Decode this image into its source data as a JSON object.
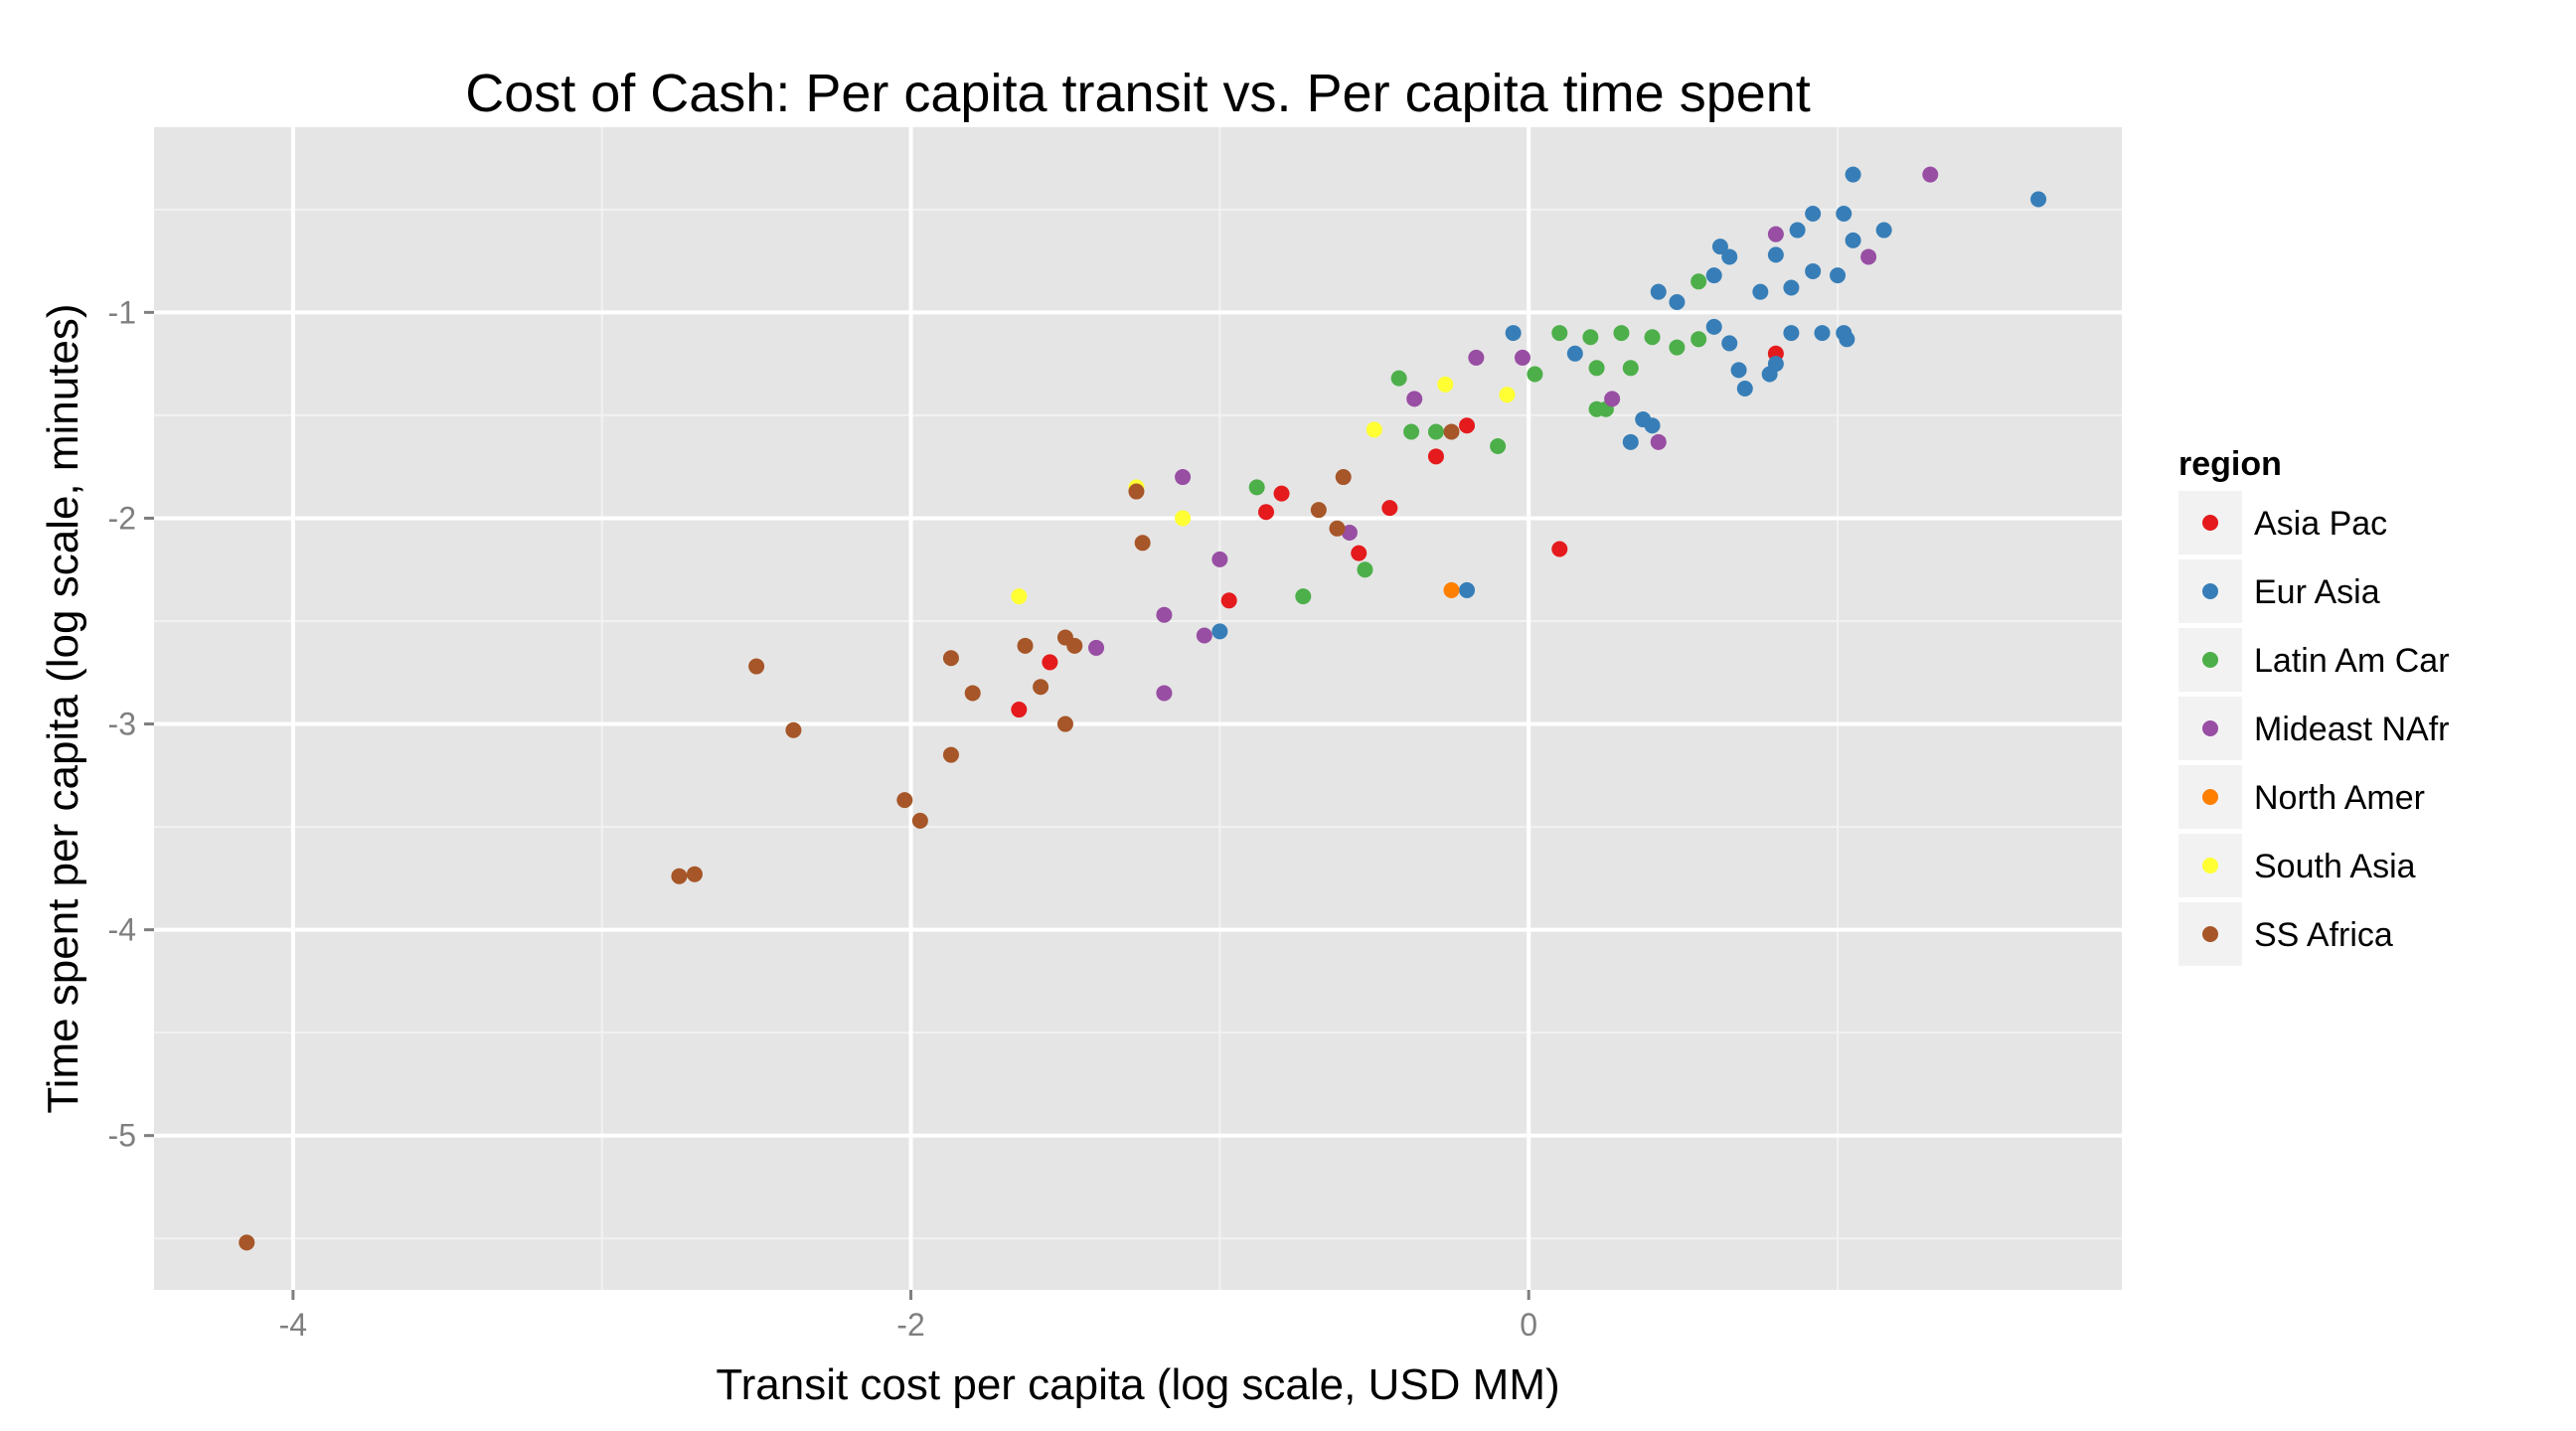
{
  "chart_data": {
    "type": "scatter",
    "title": "Cost of Cash: Per capita transit vs. Per capita time spent",
    "xlabel": "Transit cost per capita (log scale, USD MM)",
    "ylabel": "Time spent per capita (log scale, minutes)",
    "xlim": [
      -4.45,
      1.92
    ],
    "ylim": [
      -5.75,
      -0.1
    ],
    "x_ticks": [
      -4,
      -2,
      0
    ],
    "x_tick_labels": [
      "-4",
      "-2",
      "0"
    ],
    "y_ticks": [
      -5,
      -4,
      -3,
      -2,
      -1
    ],
    "y_tick_labels": [
      "-5",
      "-4",
      "-3",
      "-2",
      "-1"
    ],
    "grid": true,
    "legend": {
      "title": "region",
      "position": "right"
    },
    "series": [
      {
        "name": "Asia Pac",
        "color": "#e41a1c",
        "points": [
          [
            -0.3,
            -1.7
          ],
          [
            -0.2,
            -1.55
          ],
          [
            -0.55,
            -2.17
          ],
          [
            -0.45,
            -1.95
          ],
          [
            -0.8,
            -1.88
          ],
          [
            -0.85,
            -1.97
          ],
          [
            -0.97,
            -2.4
          ],
          [
            -1.55,
            -2.7
          ],
          [
            -1.65,
            -2.93
          ],
          [
            0.1,
            -2.15
          ],
          [
            0.8,
            -1.2
          ]
        ]
      },
      {
        "name": "Eur Asia",
        "color": "#377eb8",
        "points": [
          [
            1.05,
            -0.33
          ],
          [
            1.65,
            -0.45
          ],
          [
            0.92,
            -0.52
          ],
          [
            1.02,
            -0.52
          ],
          [
            1.15,
            -0.6
          ],
          [
            1.05,
            -0.65
          ],
          [
            0.87,
            -0.6
          ],
          [
            0.62,
            -0.68
          ],
          [
            0.65,
            -0.73
          ],
          [
            0.8,
            -0.72
          ],
          [
            0.6,
            -0.82
          ],
          [
            0.85,
            -0.88
          ],
          [
            0.92,
            -0.8
          ],
          [
            1.0,
            -0.82
          ],
          [
            0.75,
            -0.9
          ],
          [
            0.42,
            -0.9
          ],
          [
            0.48,
            -0.95
          ],
          [
            0.6,
            -1.07
          ],
          [
            0.65,
            -1.15
          ],
          [
            0.85,
            -1.1
          ],
          [
            0.95,
            -1.1
          ],
          [
            1.02,
            -1.1
          ],
          [
            1.03,
            -1.13
          ],
          [
            -0.05,
            -1.1
          ],
          [
            0.15,
            -1.2
          ],
          [
            0.68,
            -1.28
          ],
          [
            0.7,
            -1.37
          ],
          [
            0.78,
            -1.3
          ],
          [
            0.8,
            -1.25
          ],
          [
            0.37,
            -1.52
          ],
          [
            0.4,
            -1.55
          ],
          [
            0.33,
            -1.63
          ],
          [
            -0.2,
            -2.35
          ],
          [
            -1.0,
            -2.55
          ]
        ]
      },
      {
        "name": "Latin Am Car",
        "color": "#4daf4a",
        "points": [
          [
            0.55,
            -0.85
          ],
          [
            0.1,
            -1.1
          ],
          [
            0.2,
            -1.12
          ],
          [
            0.3,
            -1.1
          ],
          [
            0.4,
            -1.12
          ],
          [
            0.48,
            -1.17
          ],
          [
            0.55,
            -1.13
          ],
          [
            0.22,
            -1.27
          ],
          [
            0.33,
            -1.27
          ],
          [
            0.02,
            -1.3
          ],
          [
            -0.42,
            -1.32
          ],
          [
            -0.38,
            -1.58
          ],
          [
            -0.3,
            -1.58
          ],
          [
            -0.1,
            -1.65
          ],
          [
            0.22,
            -1.47
          ],
          [
            0.25,
            -1.47
          ],
          [
            -0.88,
            -1.85
          ],
          [
            -0.73,
            -2.38
          ],
          [
            -0.53,
            -2.25
          ]
        ]
      },
      {
        "name": "Mideast NAfr",
        "color": "#984ea3",
        "points": [
          [
            1.3,
            -0.33
          ],
          [
            0.8,
            -0.62
          ],
          [
            1.1,
            -0.73
          ],
          [
            -0.17,
            -1.22
          ],
          [
            -0.02,
            -1.22
          ],
          [
            -0.37,
            -1.42
          ],
          [
            0.27,
            -1.42
          ],
          [
            0.42,
            -1.63
          ],
          [
            -1.12,
            -1.8
          ],
          [
            -0.58,
            -2.07
          ],
          [
            -1.0,
            -2.2
          ],
          [
            -1.18,
            -2.47
          ],
          [
            -1.05,
            -2.57
          ],
          [
            -1.4,
            -2.63
          ],
          [
            -1.18,
            -2.85
          ]
        ]
      },
      {
        "name": "North Amer",
        "color": "#ff7f00",
        "points": [
          [
            -0.25,
            -2.35
          ]
        ]
      },
      {
        "name": "South Asia",
        "color": "#ffff33",
        "points": [
          [
            -0.27,
            -1.35
          ],
          [
            -0.07,
            -1.4
          ],
          [
            -0.5,
            -1.57
          ],
          [
            -1.27,
            -1.85
          ],
          [
            -1.12,
            -2.0
          ],
          [
            -1.65,
            -2.38
          ]
        ]
      },
      {
        "name": "SS Africa",
        "color": "#a65628",
        "points": [
          [
            -0.25,
            -1.58
          ],
          [
            -0.6,
            -1.8
          ],
          [
            -0.68,
            -1.96
          ],
          [
            -0.62,
            -2.05
          ],
          [
            -1.27,
            -1.87
          ],
          [
            -1.25,
            -2.12
          ],
          [
            -1.5,
            -2.58
          ],
          [
            -1.47,
            -2.62
          ],
          [
            -1.63,
            -2.62
          ],
          [
            -1.87,
            -2.68
          ],
          [
            -1.8,
            -2.85
          ],
          [
            -1.58,
            -2.82
          ],
          [
            -1.5,
            -3.0
          ],
          [
            -2.5,
            -2.72
          ],
          [
            -2.38,
            -3.03
          ],
          [
            -1.87,
            -3.15
          ],
          [
            -2.02,
            -3.37
          ],
          [
            -1.97,
            -3.47
          ],
          [
            -2.7,
            -3.73
          ],
          [
            -2.75,
            -3.74
          ],
          [
            -4.15,
            -5.52
          ]
        ]
      }
    ]
  }
}
